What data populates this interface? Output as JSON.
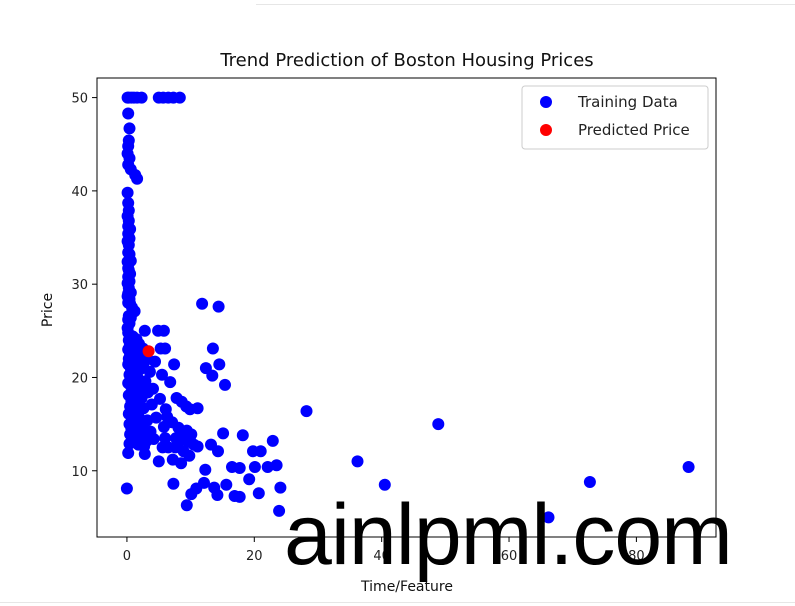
{
  "watermark": "ainlpml.com",
  "chart_data": {
    "type": "scatter",
    "title": "Trend Prediction of Boston Housing Prices",
    "xlabel": "Time/Feature",
    "ylabel": "Price",
    "xlim": [
      -4.7,
      92.5
    ],
    "ylim": [
      2.9,
      52.1
    ],
    "xticks": [
      0,
      20,
      40,
      60,
      80
    ],
    "yticks": [
      10,
      20,
      30,
      40,
      50
    ],
    "grid": false,
    "legend": "top-right",
    "series": [
      {
        "name": "Training Data",
        "color": "#0000ff",
        "points": [
          [
            0.1,
            50
          ],
          [
            0.3,
            50
          ],
          [
            0.7,
            50
          ],
          [
            1.1,
            50
          ],
          [
            1.6,
            50
          ],
          [
            2.3,
            50
          ],
          [
            5,
            50
          ],
          [
            5.7,
            50
          ],
          [
            6.5,
            50
          ],
          [
            7.3,
            50
          ],
          [
            8.3,
            50
          ],
          [
            0.2,
            48.3
          ],
          [
            0.4,
            46.7
          ],
          [
            0.3,
            45.4
          ],
          [
            0.2,
            44.8
          ],
          [
            0.1,
            44
          ],
          [
            0.4,
            43.5
          ],
          [
            0.2,
            42.8
          ],
          [
            0.6,
            42.3
          ],
          [
            1.3,
            41.7
          ],
          [
            1.6,
            41.3
          ],
          [
            0.1,
            39.8
          ],
          [
            0.2,
            38.7
          ],
          [
            0.3,
            37.9
          ],
          [
            0.1,
            37.3
          ],
          [
            0.3,
            36.8
          ],
          [
            0.2,
            36.2
          ],
          [
            0.5,
            35.9
          ],
          [
            0.2,
            35.4
          ],
          [
            0.4,
            34.9
          ],
          [
            0.1,
            34.6
          ],
          [
            0.3,
            34.2
          ],
          [
            0.2,
            33.4
          ],
          [
            0.4,
            33.2
          ],
          [
            0.6,
            32.5
          ],
          [
            0.1,
            32.4
          ],
          [
            0.2,
            31.7
          ],
          [
            0.3,
            31.5
          ],
          [
            0.5,
            31.1
          ],
          [
            0.2,
            30.8
          ],
          [
            0.4,
            30.3
          ],
          [
            0.1,
            30.1
          ],
          [
            0.3,
            29.6
          ],
          [
            0.6,
            29.1
          ],
          [
            0.2,
            29
          ],
          [
            0.1,
            28.7
          ],
          [
            0.4,
            28.4
          ],
          [
            0.2,
            28
          ],
          [
            0.5,
            27.9
          ],
          [
            0.8,
            27.5
          ],
          [
            1.2,
            27.1
          ],
          [
            0.3,
            26.6
          ],
          [
            0.6,
            26.4
          ],
          [
            0.2,
            26.2
          ],
          [
            0.4,
            25.8
          ],
          [
            0.1,
            25.3
          ],
          [
            2.8,
            25
          ],
          [
            4.9,
            25
          ],
          [
            5.8,
            25
          ],
          [
            0.2,
            24.8
          ],
          [
            0.5,
            24.5
          ],
          [
            0.9,
            24.4
          ],
          [
            1.5,
            24.1
          ],
          [
            0.3,
            24
          ],
          [
            0.7,
            23.9
          ],
          [
            1.1,
            23.7
          ],
          [
            1.9,
            23.6
          ],
          [
            0.4,
            23.3
          ],
          [
            2.5,
            23.1
          ],
          [
            5.3,
            23.1
          ],
          [
            6,
            23.1
          ],
          [
            0.2,
            23
          ],
          [
            0.9,
            22.9
          ],
          [
            1.4,
            22.6
          ],
          [
            0.5,
            22.5
          ],
          [
            2.2,
            22.4
          ],
          [
            3.1,
            22.2
          ],
          [
            0.3,
            22
          ],
          [
            1.8,
            21.9
          ],
          [
            0.8,
            21.8
          ],
          [
            2.7,
            21.6
          ],
          [
            4.4,
            21.7
          ],
          [
            0.2,
            21.4
          ],
          [
            1.2,
            21.2
          ],
          [
            0.6,
            21
          ],
          [
            2.1,
            20.9
          ],
          [
            3.6,
            20.6
          ],
          [
            5.5,
            20.3
          ],
          [
            0.4,
            20.3
          ],
          [
            1.6,
            20.1
          ],
          [
            0.9,
            19.9
          ],
          [
            2.9,
            19.6
          ],
          [
            6.8,
            19.5
          ],
          [
            0.2,
            19.4
          ],
          [
            1.3,
            19.3
          ],
          [
            0.6,
            19.1
          ],
          [
            2.4,
            18.9
          ],
          [
            4.1,
            18.8
          ],
          [
            0.9,
            18.5
          ],
          [
            3.3,
            18.4
          ],
          [
            1.7,
            18.2
          ],
          [
            0.3,
            18.1
          ],
          [
            2.3,
            17.8
          ],
          [
            5.2,
            17.7
          ],
          [
            0.7,
            17.5
          ],
          [
            1.4,
            17.4
          ],
          [
            3.9,
            17.1
          ],
          [
            0.5,
            16.9
          ],
          [
            2.6,
            16.7
          ],
          [
            6.1,
            16.6
          ],
          [
            1.1,
            16.5
          ],
          [
            0.3,
            16.1
          ],
          [
            1.8,
            15.9
          ],
          [
            4.6,
            15.7
          ],
          [
            0.8,
            15.6
          ],
          [
            3.2,
            15.4
          ],
          [
            2.1,
            15.2
          ],
          [
            0.4,
            15
          ],
          [
            1.3,
            14.8
          ],
          [
            5.8,
            14.7
          ],
          [
            0.7,
            14.5
          ],
          [
            2.6,
            14.4
          ],
          [
            3.7,
            14.2
          ],
          [
            1.5,
            14.1
          ],
          [
            0.5,
            13.9
          ],
          [
            0.9,
            13.6
          ],
          [
            2.2,
            13.6
          ],
          [
            4.2,
            13.4
          ],
          [
            1.3,
            13.3
          ],
          [
            3.1,
            13.2
          ],
          [
            0.4,
            12.9
          ],
          [
            1.8,
            12.8
          ],
          [
            2.7,
            12.6
          ],
          [
            5.6,
            12.5
          ],
          [
            0.2,
            11.9
          ],
          [
            2.8,
            11.8
          ],
          [
            0,
            8.1
          ],
          [
            7.4,
            21.4
          ],
          [
            7.8,
            17.8
          ],
          [
            8.6,
            17.4
          ],
          [
            9.3,
            16.9
          ],
          [
            6.3,
            15.8
          ],
          [
            7.1,
            15.2
          ],
          [
            8.1,
            14.6
          ],
          [
            9.4,
            14.3
          ],
          [
            10.1,
            13.9
          ],
          [
            7.7,
            13.5
          ],
          [
            8.3,
            13.2
          ],
          [
            9.7,
            13.1
          ],
          [
            10.5,
            12.8
          ],
          [
            7.6,
            12.5
          ],
          [
            8.9,
            12.1
          ],
          [
            9.8,
            11.6
          ],
          [
            7.2,
            11.2
          ],
          [
            8.5,
            10.8
          ],
          [
            11.8,
            27.9
          ],
          [
            14.4,
            27.6
          ],
          [
            13.5,
            23.1
          ],
          [
            12.4,
            21
          ],
          [
            14.5,
            21.4
          ],
          [
            13.4,
            20.2
          ],
          [
            15.4,
            19.2
          ],
          [
            9.9,
            16.6
          ],
          [
            11.1,
            16.7
          ],
          [
            8.4,
            13.8
          ],
          [
            9.9,
            13.3
          ],
          [
            11.1,
            12.6
          ],
          [
            12.3,
            10.1
          ],
          [
            13.2,
            12.8
          ],
          [
            14.3,
            12.1
          ],
          [
            15.1,
            14
          ],
          [
            16.5,
            10.4
          ],
          [
            17.7,
            10.3
          ],
          [
            18.2,
            13.8
          ],
          [
            19.8,
            12.1
          ],
          [
            20.1,
            10.4
          ],
          [
            21,
            12.1
          ],
          [
            22.1,
            10.4
          ],
          [
            22.9,
            13.2
          ],
          [
            23.5,
            10.6
          ],
          [
            24.1,
            8.2
          ],
          [
            19.2,
            9.1
          ],
          [
            15.6,
            8.5
          ],
          [
            13.7,
            8.2
          ],
          [
            12.1,
            8.7
          ],
          [
            10.9,
            8.1
          ],
          [
            10.1,
            7.5
          ],
          [
            9.4,
            6.3
          ],
          [
            14.2,
            7.4
          ],
          [
            16.9,
            7.3
          ],
          [
            17.7,
            7.2
          ],
          [
            20.7,
            7.6
          ],
          [
            23.9,
            5.7
          ],
          [
            28.2,
            16.4
          ],
          [
            36.2,
            11
          ],
          [
            40.5,
            8.5
          ],
          [
            48.9,
            15
          ],
          [
            66.2,
            5
          ],
          [
            72.7,
            8.8
          ],
          [
            88.2,
            10.4
          ],
          [
            7.3,
            8.6
          ],
          [
            6.5,
            12.5
          ],
          [
            5,
            11
          ],
          [
            6,
            13.5
          ]
        ]
      },
      {
        "name": "Predicted Price",
        "color": "#ff0000",
        "points": [
          [
            3.4,
            22.8
          ]
        ]
      }
    ]
  }
}
